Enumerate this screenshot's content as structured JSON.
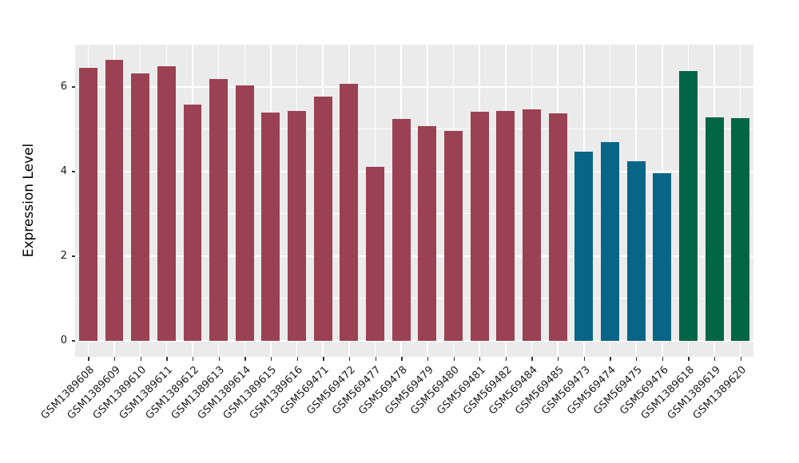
{
  "figure": {
    "background_color": "#ffffff",
    "panel_background_color": "#ebebeb",
    "grid_color": "#ffffff",
    "axis_text_color": "#1a1a1a",
    "tick_mark_color": "#333333"
  },
  "chart_data": {
    "type": "bar",
    "title": "",
    "xlabel": "",
    "ylabel": "Expression Level",
    "ylim": [
      -0.38,
      7.0
    ],
    "yticks": [
      0,
      2,
      4,
      6
    ],
    "yticks_minor": [
      1,
      3,
      5
    ],
    "grid": true,
    "legend_position": "none",
    "bar_width_fraction": 0.7,
    "categories": [
      "GSM1389608",
      "GSM1389609",
      "GSM1389610",
      "GSM1389611",
      "GSM1389612",
      "GSM1389613",
      "GSM1389614",
      "GSM1389615",
      "GSM1389616",
      "GSM569471",
      "GSM569472",
      "GSM569477",
      "GSM569478",
      "GSM569479",
      "GSM569480",
      "GSM569481",
      "GSM569482",
      "GSM569484",
      "GSM569485",
      "GSM569473",
      "GSM569474",
      "GSM569475",
      "GSM569476",
      "GSM1389618",
      "GSM1389619",
      "GSM1389620"
    ],
    "values": [
      6.45,
      6.65,
      6.33,
      6.5,
      5.58,
      6.19,
      6.03,
      5.39,
      5.44,
      5.77,
      6.08,
      4.11,
      5.24,
      5.08,
      4.97,
      5.41,
      5.44,
      5.47,
      5.37,
      4.47,
      4.7,
      4.25,
      3.96,
      6.37,
      5.28,
      5.26
    ],
    "colors": [
      "#9a4253",
      "#9a4253",
      "#9a4253",
      "#9a4253",
      "#9a4253",
      "#9a4253",
      "#9a4253",
      "#9a4253",
      "#9a4253",
      "#9a4253",
      "#9a4253",
      "#9a4253",
      "#9a4253",
      "#9a4253",
      "#9a4253",
      "#9a4253",
      "#9a4253",
      "#9a4253",
      "#9a4253",
      "#096587",
      "#096587",
      "#096587",
      "#096587",
      "#006645",
      "#006645",
      "#006645"
    ]
  }
}
